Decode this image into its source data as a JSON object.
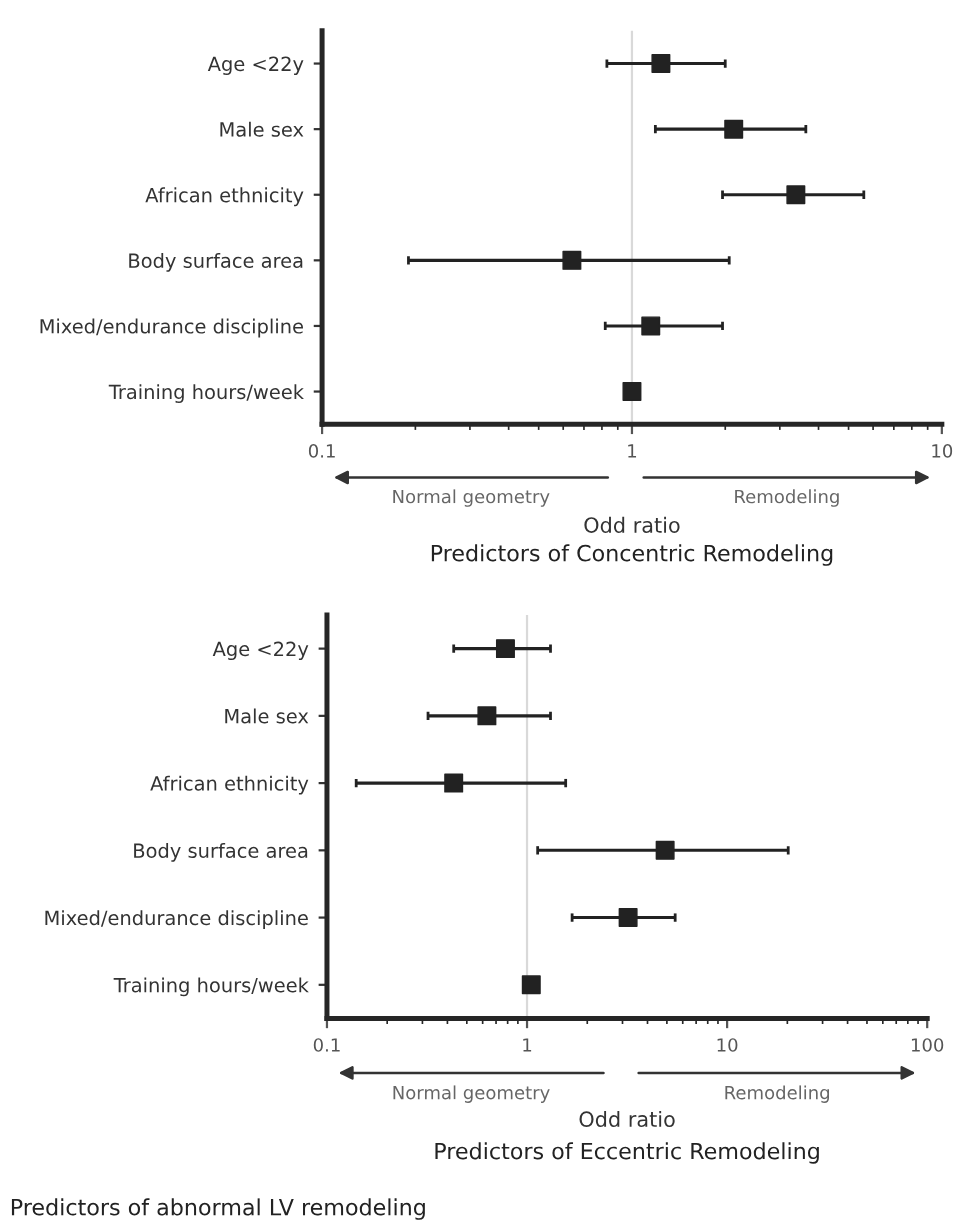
{
  "chart_data": [
    {
      "type": "scatter",
      "orientation": "horizontal",
      "title": "Predictors of Concentric Remodeling",
      "xlabel": "Odd ratio",
      "log": "x",
      "marker": "square",
      "grid": false,
      "legend": false,
      "categories": [
        "Age <22y",
        "Male sex",
        "African ethnicity",
        "Body surface area",
        "Mixed/endurance discipline",
        "Training hours/week"
      ],
      "series": [
        {
          "color": "#222222",
          "values": [
            1.24,
            2.13,
            3.38,
            0.64,
            1.15,
            1.0
          ],
          "errors": [
            [
              0.83,
              2.0
            ],
            [
              1.19,
              3.64
            ],
            [
              1.96,
              5.6
            ],
            [
              0.19,
              2.06
            ],
            [
              0.82,
              1.96
            ],
            null
          ]
        }
      ],
      "xlim": [
        0.1,
        10
      ],
      "xticks": [
        0.1,
        1,
        10
      ],
      "ref_lines": [
        {
          "axis": "x",
          "value": 1,
          "color": "#d9d9d9"
        }
      ],
      "annotations": [
        "Normal geometry",
        "Remodeling"
      ]
    },
    {
      "type": "scatter",
      "orientation": "horizontal",
      "title": "Predictors of Eccentric Remodeling",
      "xlabel": "Odd ratio",
      "log": "x",
      "marker": "square",
      "grid": false,
      "legend": false,
      "categories": [
        "Age <22y",
        "Male sex",
        "African ethnicity",
        "Body surface area",
        "Mixed/endurance discipline",
        "Training hours/week"
      ],
      "series": [
        {
          "color": "#222222",
          "values": [
            0.78,
            0.63,
            0.43,
            4.9,
            3.2,
            1.05
          ],
          "errors": [
            [
              0.43,
              1.31
            ],
            [
              0.32,
              1.31
            ],
            [
              0.14,
              1.56
            ],
            [
              1.13,
              20.2
            ],
            [
              1.68,
              5.5
            ],
            null
          ]
        }
      ],
      "xlim": [
        0.1,
        100
      ],
      "xticks": [
        0.1,
        1,
        10,
        100
      ],
      "ref_lines": [
        {
          "axis": "x",
          "value": 1,
          "color": "#d9d9d9"
        }
      ],
      "annotations": [
        "Normal geometry",
        "Remodeling",
        "Predictors of abnormal LV remodeling"
      ]
    }
  ]
}
